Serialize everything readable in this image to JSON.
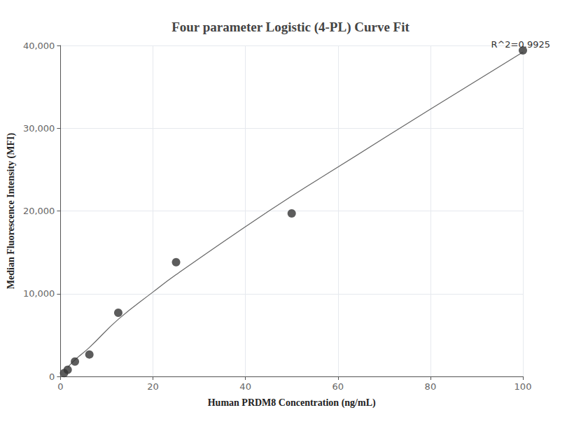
{
  "chart_data": {
    "type": "scatter",
    "title": "Four parameter Logistic (4-PL) Curve Fit",
    "x_label": "Human PRDM8 Concentration (ng/mL)",
    "y_label": "Median Fluorescence Intensity (MFI)",
    "annotation": "R^2=0.9925",
    "series": [
      {
        "type": "scatter",
        "color": "#333333",
        "marker": "circle",
        "x": [
          0.78,
          1.56,
          3.125,
          6.25,
          12.5,
          25,
          50,
          100
        ],
        "values": [
          400,
          800,
          1800,
          2650,
          7700,
          13800,
          19700,
          39400
        ]
      },
      {
        "type": "line",
        "color": "#666666",
        "line_style": "solid",
        "x": [
          1.56,
          3.125,
          6.25,
          12.5,
          20,
          25,
          40,
          50,
          60,
          80,
          100
        ],
        "values": [
          1100,
          2000,
          3500,
          6900,
          10200,
          12300,
          18100,
          21800,
          25300,
          32300,
          39200
        ]
      }
    ],
    "xlim": [
      0,
      100
    ],
    "xticks": [
      0,
      20,
      40,
      60,
      80,
      100
    ],
    "ylim": [
      0,
      40000
    ],
    "yticks": [
      0,
      {
        "value": 10000,
        "label": "10,000"
      },
      {
        "value": 20000,
        "label": "20,000"
      },
      {
        "value": 30000,
        "label": "30,000"
      },
      {
        "value": 40000,
        "label": "40,000"
      }
    ],
    "grid": true
  }
}
